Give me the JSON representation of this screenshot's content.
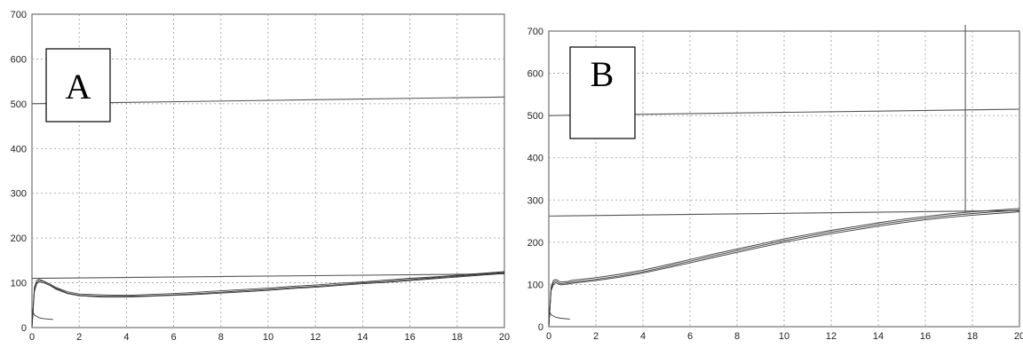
{
  "chart_data": [
    {
      "panel": "A",
      "type": "line",
      "xlim": [
        0,
        20
      ],
      "ylim": [
        0,
        700
      ],
      "x_ticks": [
        0,
        2,
        4,
        6,
        8,
        10,
        12,
        14,
        16,
        18,
        20
      ],
      "y_ticks": [
        0,
        100,
        200,
        300,
        400,
        500,
        600,
        700
      ],
      "grid": true,
      "series": [
        {
          "x": [
            0,
            0.1,
            0.2,
            0.3,
            0.5,
            0.8,
            1.0,
            1.5,
            2,
            3,
            4,
            5,
            6,
            7,
            8,
            9,
            10,
            11,
            12,
            13,
            14,
            15,
            16,
            17,
            18,
            19,
            20
          ],
          "y": [
            0,
            85,
            100,
            105,
            103,
            95,
            88,
            77,
            72,
            70,
            70,
            71,
            73,
            76,
            79,
            82,
            85,
            89,
            92,
            96,
            100,
            103,
            107,
            111,
            115,
            119,
            123
          ]
        },
        {
          "x": [
            0,
            0.1,
            0.2,
            0.3,
            0.5,
            0.8,
            1.0,
            1.5,
            2,
            3,
            4,
            5,
            6,
            7,
            8,
            9,
            10,
            11,
            12,
            13,
            14,
            15,
            16,
            17,
            18,
            19,
            20
          ],
          "y": [
            0,
            90,
            105,
            108,
            104,
            96,
            90,
            80,
            75,
            73,
            72,
            74,
            76,
            79,
            82,
            85,
            88,
            92,
            95,
            99,
            102,
            106,
            110,
            113,
            117,
            121,
            125
          ]
        },
        {
          "x": [
            0,
            0.1,
            0.2,
            0.3,
            0.5,
            0.8,
            1.0,
            1.5,
            2,
            3,
            4,
            5,
            6,
            7,
            8,
            9,
            10,
            11,
            12,
            13,
            14,
            15,
            16,
            17,
            18,
            19,
            20
          ],
          "y": [
            0,
            80,
            98,
            102,
            100,
            93,
            86,
            76,
            71,
            68,
            68,
            70,
            72,
            74,
            77,
            80,
            83,
            87,
            90,
            94,
            98,
            101,
            105,
            109,
            113,
            117,
            121
          ]
        },
        {
          "x": [
            0,
            0.1,
            0.3,
            0.5,
            0.7,
            0.9
          ],
          "y": [
            40,
            28,
            22,
            20,
            19,
            18
          ]
        }
      ],
      "reference_lines": [
        {
          "x": [
            0,
            20
          ],
          "y": [
            110,
            120
          ]
        },
        {
          "x": [
            0,
            20
          ],
          "y": [
            500,
            515
          ]
        }
      ]
    },
    {
      "panel": "B",
      "type": "line",
      "xlim": [
        0,
        20
      ],
      "ylim": [
        0,
        700
      ],
      "x_ticks": [
        0,
        2,
        4,
        6,
        8,
        10,
        12,
        14,
        16,
        18,
        20
      ],
      "y_ticks": [
        0,
        100,
        200,
        300,
        400,
        500,
        600,
        700
      ],
      "grid": true,
      "series": [
        {
          "x": [
            0,
            0.1,
            0.2,
            0.3,
            0.5,
            0.8,
            1,
            2,
            3,
            4,
            5,
            6,
            7,
            8,
            9,
            10,
            11,
            12,
            13,
            14,
            15,
            16,
            17,
            18,
            19,
            20
          ],
          "y": [
            0,
            90,
            105,
            108,
            102,
            104,
            106,
            112,
            120,
            130,
            142,
            155,
            168,
            180,
            192,
            204,
            214,
            224,
            233,
            242,
            250,
            257,
            263,
            268,
            272,
            276
          ]
        },
        {
          "x": [
            0,
            0.1,
            0.2,
            0.3,
            0.5,
            0.8,
            1,
            2,
            3,
            4,
            5,
            6,
            7,
            8,
            9,
            10,
            11,
            12,
            13,
            14,
            15,
            16,
            17,
            18,
            19,
            20
          ],
          "y": [
            0,
            95,
            110,
            112,
            106,
            107,
            110,
            116,
            124,
            134,
            146,
            159,
            172,
            184,
            196,
            208,
            218,
            228,
            237,
            246,
            254,
            261,
            267,
            272,
            276,
            280
          ]
        },
        {
          "x": [
            0,
            0.1,
            0.2,
            0.3,
            0.5,
            0.8,
            1,
            2,
            3,
            4,
            5,
            6,
            7,
            8,
            9,
            10,
            11,
            12,
            13,
            14,
            15,
            16,
            17,
            18,
            19,
            20
          ],
          "y": [
            0,
            85,
            100,
            104,
            99,
            101,
            103,
            109,
            117,
            127,
            139,
            151,
            164,
            176,
            188,
            200,
            210,
            220,
            229,
            238,
            246,
            253,
            259,
            264,
            268,
            272
          ]
        },
        {
          "x": [
            0,
            0.1,
            0.3,
            0.5,
            0.7,
            0.9
          ],
          "y": [
            40,
            28,
            22,
            20,
            19,
            18
          ]
        }
      ],
      "reference_lines": [
        {
          "x": [
            0,
            20
          ],
          "y": [
            262,
            275
          ]
        },
        {
          "x": [
            0,
            20
          ],
          "y": [
            500,
            515
          ]
        },
        {
          "x": [
            17.7,
            17.7
          ],
          "y": [
            270,
            715
          ]
        }
      ]
    }
  ]
}
